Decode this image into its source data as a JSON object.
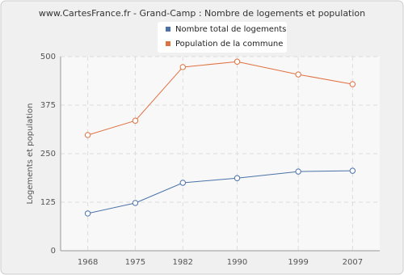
{
  "chart_data": {
    "type": "line",
    "title": "www.CartesFrance.fr - Grand-Camp : Nombre de logements et population",
    "y_label": "Logements et population",
    "x": [
      1968,
      1975,
      1982,
      1990,
      1999,
      2007
    ],
    "xlim": [
      1964,
      2011
    ],
    "xticks": [
      1968,
      1975,
      1982,
      1990,
      1999,
      2007
    ],
    "ylim": [
      0,
      500
    ],
    "yticks": [
      0,
      125,
      250,
      375,
      500
    ],
    "grid": true,
    "legend": "top",
    "series": [
      {
        "name": "Nombre total de logements",
        "color": "#4a72a8",
        "values": [
          96,
          123,
          175,
          187,
          204,
          206
        ]
      },
      {
        "name": "Population de la commune",
        "color": "#e07040",
        "values": [
          298,
          335,
          473,
          487,
          454,
          429
        ]
      }
    ]
  }
}
